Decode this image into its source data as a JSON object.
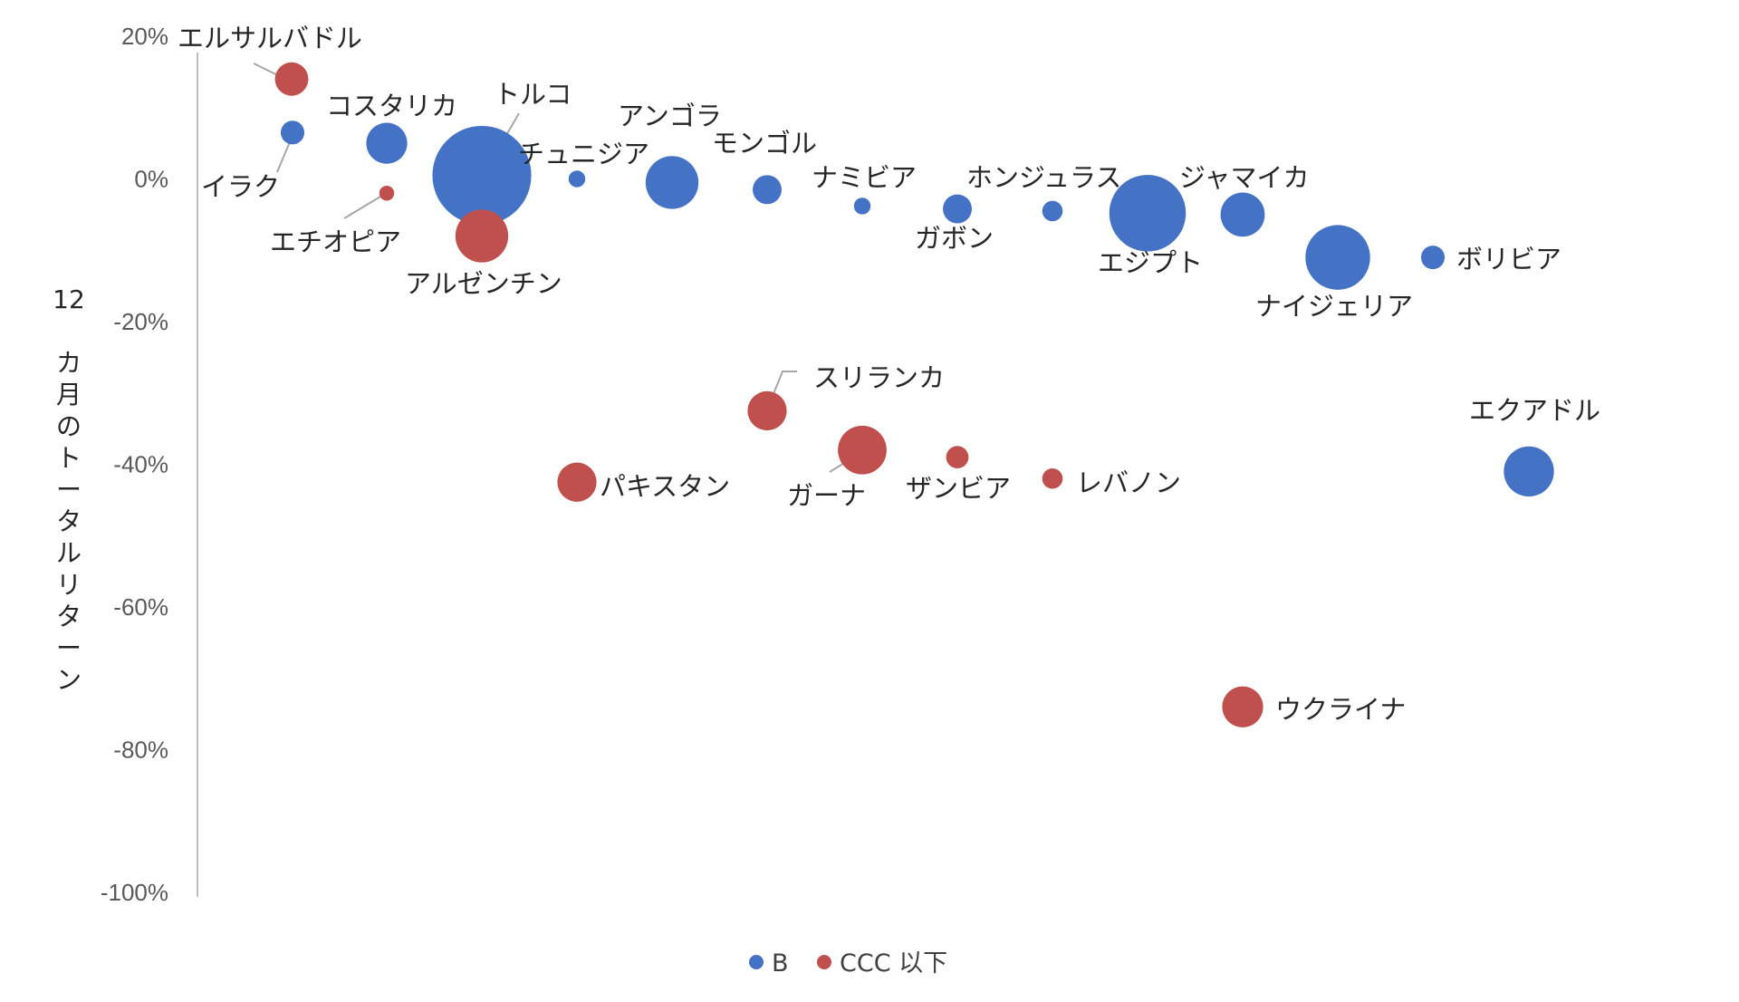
{
  "chart_data": {
    "type": "bubble",
    "title": "",
    "ylabel": "12カ月のトータルリターン",
    "ylim": [
      -100,
      20
    ],
    "yticks": [
      "20%",
      "0%",
      "-20%",
      "-40%",
      "-60%",
      "-80%",
      "-100%"
    ],
    "grid": false,
    "legend_position": "bottom",
    "series": [
      {
        "name": "B",
        "color": "#4472C4",
        "points": [
          {
            "label": "イラク",
            "x": 1,
            "y": 6.5,
            "size": 2
          },
          {
            "label": "コスタリカ",
            "x": 2,
            "y": 5,
            "size": 6
          },
          {
            "label": "トルコ",
            "x": 3,
            "y": 0.5,
            "size": 35
          },
          {
            "label": "チュニジア",
            "x": 4,
            "y": 0,
            "size": 1
          },
          {
            "label": "アンゴラ",
            "x": 5,
            "y": -0.5,
            "size": 10
          },
          {
            "label": "モンゴル",
            "x": 6,
            "y": -1.5,
            "size": 3
          },
          {
            "label": "ナミビア",
            "x": 7,
            "y": -3.8,
            "size": 1
          },
          {
            "label": "ガボン",
            "x": 8,
            "y": -4.2,
            "size": 3
          },
          {
            "label": "ホンジュラス",
            "x": 9,
            "y": -4.5,
            "size": 1.5
          },
          {
            "label": "エジプト",
            "x": 10,
            "y": -4.8,
            "size": 21
          },
          {
            "label": "ジャマイカ",
            "x": 11,
            "y": -5,
            "size": 7
          },
          {
            "label": "ナイジェリア",
            "x": 12,
            "y": -11,
            "size": 15
          },
          {
            "label": "ボリビア",
            "x": 13,
            "y": -11,
            "size": 2
          },
          {
            "label": "エクアドル",
            "x": 14,
            "y": -41,
            "size": 9
          }
        ]
      },
      {
        "name": "CCC 以下",
        "color": "#C0504D",
        "points": [
          {
            "label": "エルサルバドル",
            "x": 1,
            "y": 14,
            "size": 4
          },
          {
            "label": "エチオピア",
            "x": 2,
            "y": -2,
            "size": 0.8
          },
          {
            "label": "アルゼンチン",
            "x": 3,
            "y": -8,
            "size": 10
          },
          {
            "label": "パキスタン",
            "x": 4,
            "y": -42.5,
            "size": 5.5
          },
          {
            "label": "スリランカ",
            "x": 6,
            "y": -32.5,
            "size": 5.5
          },
          {
            "label": "ガーナ",
            "x": 7,
            "y": -38,
            "size": 8.5
          },
          {
            "label": "ザンビア",
            "x": 8,
            "y": -39,
            "size": 1.8
          },
          {
            "label": "レバノン",
            "x": 9,
            "y": -42,
            "size": 1.5
          },
          {
            "label": "ウクライナ",
            "x": 11,
            "y": -74,
            "size": 6
          }
        ]
      }
    ]
  },
  "legend": {
    "items": [
      {
        "label": "B",
        "color": "#4472C4"
      },
      {
        "label": "CCC 以下",
        "color": "#C0504D"
      }
    ]
  }
}
